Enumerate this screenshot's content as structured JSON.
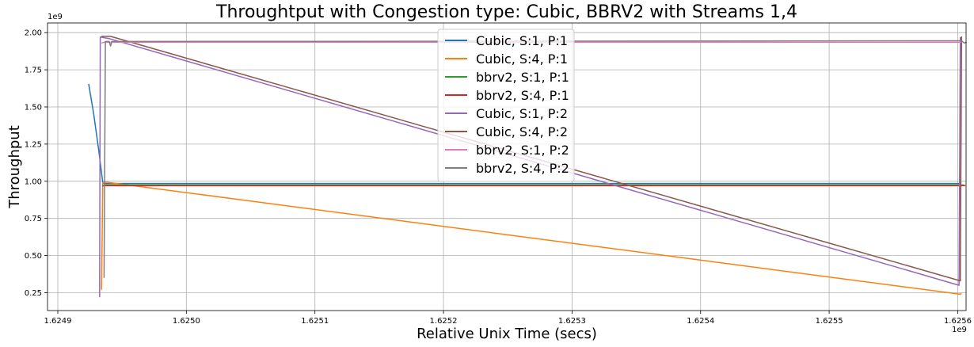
{
  "chart_data": {
    "type": "line",
    "title": "Throughtput with Congestion type: Cubic, BBRV2 with Streams 1,4",
    "xlabel": "Relative Unix Time (secs)",
    "ylabel": "Throughput",
    "x_offset_label": "1e9",
    "y_offset_label": "1e9",
    "xlim": [
      1624892000,
      1625606500
    ],
    "ylim": [
      130000000,
      2065000000
    ],
    "x_ticks": [
      1624900000,
      1625000000,
      1625100000,
      1625200000,
      1625300000,
      1625400000,
      1625500000,
      1625600000
    ],
    "x_tick_labels": [
      "1.6249",
      "1.6250",
      "1.6251",
      "1.6252",
      "1.6253",
      "1.6254",
      "1.6255",
      "1.6256"
    ],
    "y_ticks": [
      250000000,
      500000000,
      750000000,
      1000000000,
      1250000000,
      1500000000,
      1750000000,
      2000000000
    ],
    "y_tick_labels": [
      "0.25",
      "0.50",
      "0.75",
      "1.00",
      "1.25",
      "1.50",
      "1.75",
      "2.00"
    ],
    "grid": true,
    "legend_position": "top-center",
    "series": [
      {
        "name": "Cubic, S:1, P:1",
        "color": "#1f77b4",
        "points": [
          [
            1624924000,
            1655000000
          ],
          [
            1624928000,
            1450000000
          ],
          [
            1624932000,
            1200000000
          ],
          [
            1624935000,
            990000000
          ],
          [
            1624936000,
            985000000
          ],
          [
            1625602000,
            985000000
          ],
          [
            1625602500,
            990000000
          ]
        ]
      },
      {
        "name": "Cubic, S:4, P:1",
        "color": "#ff7f0e",
        "points": [
          [
            1624934000,
            270000000
          ],
          [
            1624935000,
            990000000
          ],
          [
            1624937000,
            995000000
          ],
          [
            1625602000,
            240000000
          ],
          [
            1625603000,
            245000000
          ]
        ]
      },
      {
        "name": "bbrv2, S:1, P:1",
        "color": "#2ca02c",
        "points": [
          [
            1624935000,
            970000000
          ],
          [
            1624937000,
            975000000
          ],
          [
            1625605000,
            975000000
          ]
        ]
      },
      {
        "name": "bbrv2, S:4, P:1",
        "color": "#d62728",
        "points": [
          [
            1624934500,
            970000000
          ],
          [
            1624938000,
            970000000
          ],
          [
            1625606000,
            970000000
          ]
        ]
      },
      {
        "name": "Cubic, S:1, P:2",
        "color": "#9467bd",
        "points": [
          [
            1624932500,
            220000000
          ],
          [
            1624933000,
            1970000000
          ],
          [
            1624940000,
            1960000000
          ],
          [
            1625601000,
            300000000
          ],
          [
            1625602000,
            1970000000
          ]
        ]
      },
      {
        "name": "Cubic, S:4, P:2",
        "color": "#8c564b",
        "points": [
          [
            1624934000,
            1975000000
          ],
          [
            1624935000,
            1975000000
          ],
          [
            1624941000,
            1975000000
          ],
          [
            1625602000,
            330000000
          ],
          [
            1625603000,
            1975000000
          ]
        ]
      },
      {
        "name": "bbrv2, S:1, P:2",
        "color": "#e377c2",
        "points": [
          [
            1624934000,
            1930000000
          ],
          [
            1624936000,
            1935000000
          ],
          [
            1625603000,
            1935000000
          ]
        ]
      },
      {
        "name": "bbrv2, S:4, P:2",
        "color": "#7f7f7f",
        "points": [
          [
            1624936000,
            350000000
          ],
          [
            1624937000,
            1940000000
          ],
          [
            1624940000,
            1940000000
          ],
          [
            1624941000,
            1910000000
          ],
          [
            1624942000,
            1940000000
          ],
          [
            1625603000,
            1945000000
          ],
          [
            1625605000,
            1930000000
          ],
          [
            1625607000,
            1935000000
          ]
        ]
      }
    ]
  }
}
